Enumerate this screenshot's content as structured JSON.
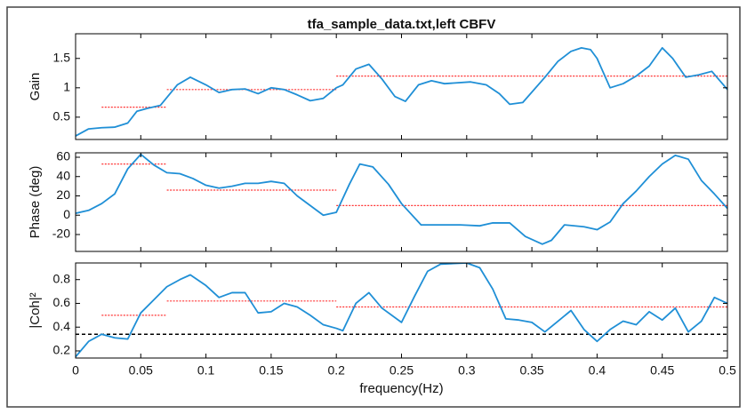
{
  "chart_data": [
    {
      "type": "line",
      "title": "tfa_sample_data.txt,left CBFV",
      "ylabel": "Gain",
      "color": "#1f8fd6",
      "x": [
        0,
        0.01,
        0.02,
        0.03,
        0.04,
        0.047,
        0.055,
        0.065,
        0.078,
        0.088,
        0.1,
        0.11,
        0.12,
        0.13,
        0.14,
        0.15,
        0.16,
        0.17,
        0.18,
        0.19,
        0.2,
        0.205,
        0.215,
        0.225,
        0.235,
        0.245,
        0.253,
        0.263,
        0.273,
        0.283,
        0.303,
        0.315,
        0.325,
        0.333,
        0.343,
        0.36,
        0.37,
        0.38,
        0.388,
        0.395,
        0.4,
        0.41,
        0.42,
        0.43,
        0.44,
        0.45,
        0.458,
        0.468,
        0.478,
        0.488,
        0.5
      ],
      "values": [
        0.18,
        0.3,
        0.32,
        0.33,
        0.4,
        0.6,
        0.65,
        0.7,
        1.05,
        1.18,
        1.05,
        0.92,
        0.97,
        0.98,
        0.9,
        1.0,
        0.97,
        0.88,
        0.78,
        0.82,
        1.0,
        1.05,
        1.32,
        1.4,
        1.15,
        0.85,
        0.77,
        1.05,
        1.12,
        1.07,
        1.1,
        1.05,
        0.9,
        0.72,
        0.75,
        1.18,
        1.45,
        1.62,
        1.68,
        1.65,
        1.5,
        1.0,
        1.07,
        1.2,
        1.37,
        1.68,
        1.5,
        1.18,
        1.22,
        1.28,
        0.97
      ],
      "band_edges": [
        0.02,
        0.07,
        0.2,
        0.5
      ],
      "band_values": [
        0.67,
        0.97,
        1.2
      ],
      "band_color": "#ff3333",
      "xlim": [
        0,
        0.5
      ],
      "xticks": [
        0,
        0.05,
        0.1,
        0.15,
        0.2,
        0.25,
        0.3,
        0.35,
        0.4,
        0.45,
        0.5
      ],
      "ylim": [
        0.12,
        1.92
      ],
      "yticks": [
        0.5,
        1,
        1.5
      ]
    },
    {
      "type": "line",
      "ylabel": "Phase (deg)",
      "color": "#1f8fd6",
      "x": [
        0,
        0.01,
        0.02,
        0.03,
        0.04,
        0.05,
        0.06,
        0.07,
        0.08,
        0.09,
        0.1,
        0.11,
        0.12,
        0.13,
        0.14,
        0.15,
        0.16,
        0.17,
        0.18,
        0.19,
        0.2,
        0.21,
        0.218,
        0.228,
        0.24,
        0.25,
        0.265,
        0.28,
        0.295,
        0.31,
        0.32,
        0.333,
        0.345,
        0.358,
        0.365,
        0.375,
        0.39,
        0.4,
        0.41,
        0.42,
        0.43,
        0.44,
        0.45,
        0.46,
        0.47,
        0.48,
        0.49,
        0.5
      ],
      "values": [
        2,
        5,
        12,
        22,
        48,
        63,
        52,
        44,
        43,
        38,
        31,
        28,
        30,
        33,
        33,
        35,
        33,
        20,
        10,
        0,
        3,
        32,
        53,
        50,
        32,
        12,
        -10,
        -10,
        -10,
        -11,
        -8,
        -8,
        -22,
        -30,
        -26,
        -10,
        -12,
        -15,
        -7,
        12,
        25,
        40,
        53,
        62,
        58,
        36,
        22,
        7
      ],
      "band_edges": [
        0.02,
        0.07,
        0.2,
        0.5
      ],
      "band_values": [
        53,
        26,
        10
      ],
      "band_color": "#ff3333",
      "xlim": [
        0,
        0.5
      ],
      "xticks": [
        0,
        0.05,
        0.1,
        0.15,
        0.2,
        0.25,
        0.3,
        0.35,
        0.4,
        0.45,
        0.5
      ],
      "ylim": [
        -37.5,
        64.6
      ],
      "yticks": [
        -20,
        0,
        20,
        40,
        60
      ]
    },
    {
      "type": "line",
      "ylabel": "|Coh|²",
      "xlabel": "frequency(Hz)",
      "color": "#1f8fd6",
      "x": [
        0,
        0.01,
        0.02,
        0.03,
        0.04,
        0.05,
        0.06,
        0.07,
        0.08,
        0.088,
        0.1,
        0.11,
        0.12,
        0.13,
        0.14,
        0.15,
        0.16,
        0.17,
        0.18,
        0.19,
        0.2,
        0.205,
        0.215,
        0.225,
        0.235,
        0.25,
        0.26,
        0.27,
        0.28,
        0.3,
        0.31,
        0.32,
        0.33,
        0.34,
        0.35,
        0.36,
        0.37,
        0.38,
        0.39,
        0.4,
        0.41,
        0.42,
        0.43,
        0.44,
        0.45,
        0.46,
        0.47,
        0.48,
        0.49,
        0.5
      ],
      "values": [
        0.15,
        0.28,
        0.34,
        0.31,
        0.3,
        0.52,
        0.63,
        0.74,
        0.8,
        0.84,
        0.75,
        0.65,
        0.69,
        0.69,
        0.52,
        0.53,
        0.6,
        0.57,
        0.5,
        0.42,
        0.39,
        0.37,
        0.6,
        0.69,
        0.56,
        0.44,
        0.66,
        0.87,
        0.93,
        0.94,
        0.9,
        0.72,
        0.47,
        0.46,
        0.44,
        0.36,
        0.45,
        0.54,
        0.38,
        0.28,
        0.38,
        0.45,
        0.42,
        0.53,
        0.46,
        0.56,
        0.36,
        0.45,
        0.65,
        0.6
      ],
      "band_edges": [
        0.02,
        0.07,
        0.2,
        0.5
      ],
      "band_values": [
        0.5,
        0.62,
        0.57
      ],
      "band_color": "#ff3333",
      "threshold": 0.34,
      "threshold_color": "#000000",
      "xlim": [
        0,
        0.5
      ],
      "xticks": [
        0,
        0.05,
        0.1,
        0.15,
        0.2,
        0.25,
        0.3,
        0.35,
        0.4,
        0.45,
        0.5
      ],
      "ylim": [
        0.14,
        0.94
      ],
      "yticks": [
        0.2,
        0.4,
        0.6,
        0.8
      ]
    }
  ]
}
